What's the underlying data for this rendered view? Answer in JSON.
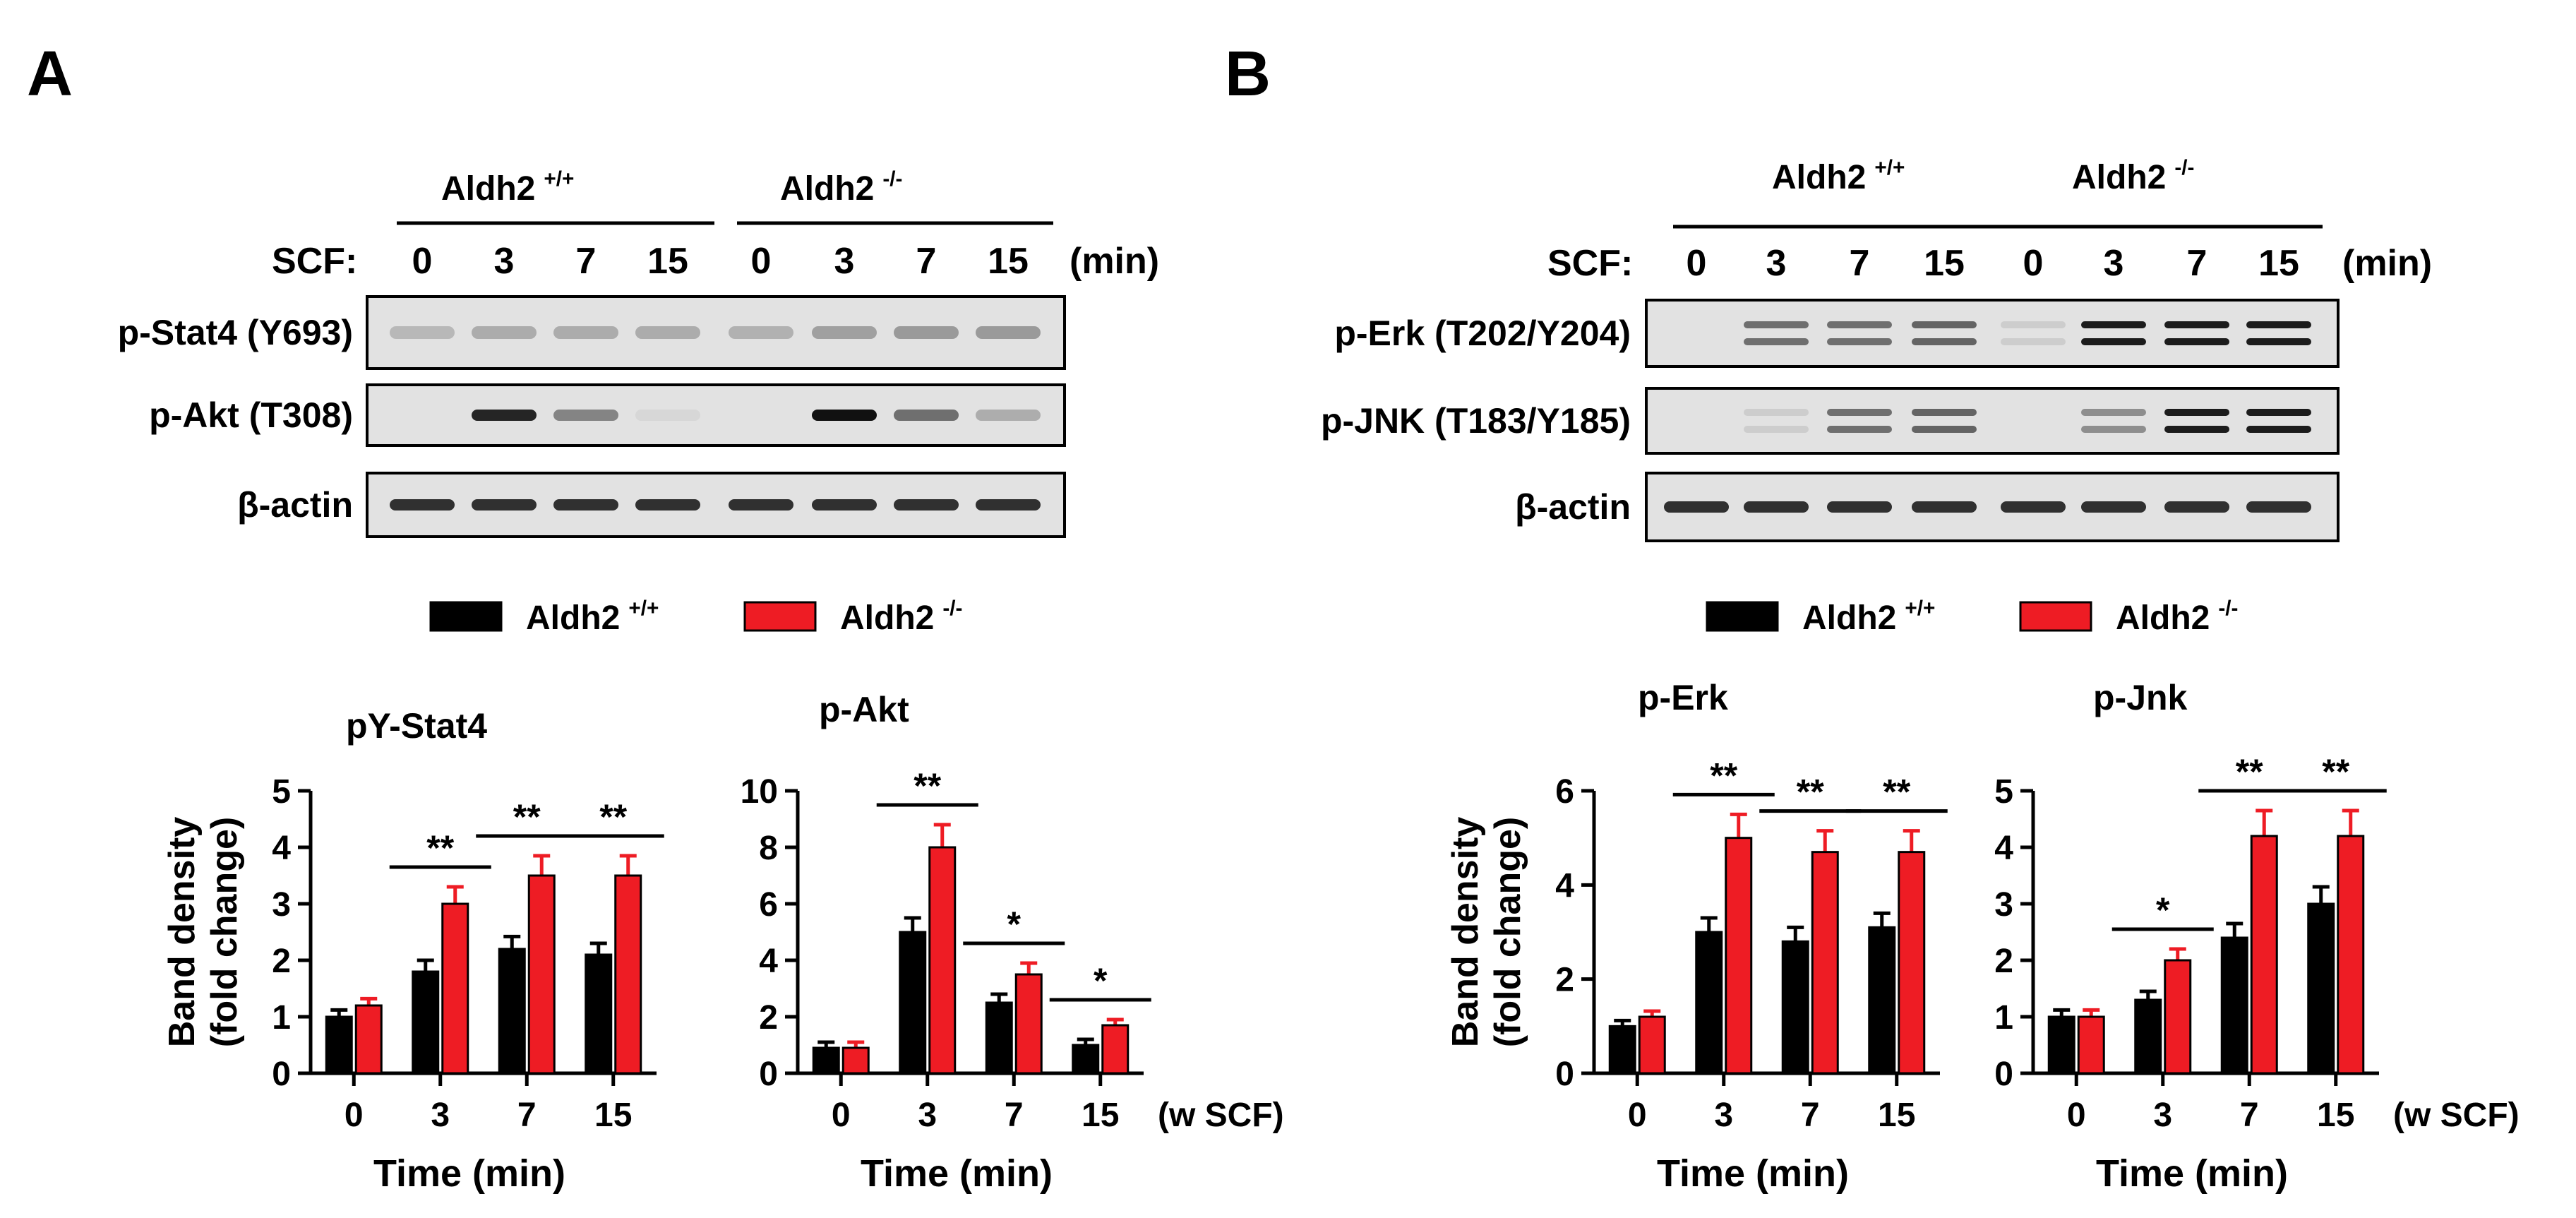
{
  "colors": {
    "wt": "#000000",
    "ko": "#ee1c24",
    "band": "#111111",
    "blotBg": "#e2e2e2"
  },
  "panels": [
    {
      "letter": "A",
      "genotypes": [
        "Aldh2",
        "Aldh2"
      ],
      "genotype_sup": [
        "+/+",
        "-/-"
      ],
      "scf_label": "SCF:",
      "timepoints": [
        "0",
        "3",
        "7",
        "15",
        "0",
        "3",
        "7",
        "15"
      ],
      "min_label": "(min)",
      "blots": [
        {
          "label": "p-Stat4 (Y693)",
          "type": "faint",
          "intensity": [
            0.35,
            0.45,
            0.45,
            0.45,
            0.4,
            0.55,
            0.6,
            0.6
          ]
        },
        {
          "label": "p-Akt  (T308)",
          "type": "single",
          "intensity": [
            0,
            0.9,
            0.45,
            0.05,
            0,
            1,
            0.55,
            0.25
          ]
        },
        {
          "label": "β-actin",
          "type": "single",
          "intensity": [
            0.85,
            0.85,
            0.85,
            0.85,
            0.85,
            0.85,
            0.85,
            0.85
          ]
        }
      ],
      "legend": [
        {
          "name": "Aldh2",
          "sup": "+/+"
        },
        {
          "name": "Aldh2",
          "sup": "-/-"
        }
      ]
    },
    {
      "letter": "B",
      "genotypes": [
        "Aldh2",
        "Aldh2"
      ],
      "genotype_sup": [
        "+/+",
        "-/-"
      ],
      "scf_label": "SCF:",
      "timepoints": [
        "0",
        "3",
        "7",
        "15",
        "0",
        "3",
        "7",
        "15"
      ],
      "min_label": "(min)",
      "blots": [
        {
          "label": "p-Erk (T202/Y204)",
          "type": "double",
          "intensity": [
            0,
            0.55,
            0.55,
            0.6,
            0.1,
            0.95,
            0.95,
            0.95
          ]
        },
        {
          "label": "p-JNK (T183/Y185)",
          "type": "double",
          "intensity": [
            0,
            0.1,
            0.55,
            0.6,
            0,
            0.4,
            0.95,
            0.95
          ]
        },
        {
          "label": "β-actin",
          "type": "single",
          "intensity": [
            0.85,
            0.85,
            0.85,
            0.85,
            0.85,
            0.85,
            0.85,
            0.85
          ]
        }
      ],
      "legend": [
        {
          "name": "Aldh2",
          "sup": "+/+"
        },
        {
          "name": "Aldh2",
          "sup": "-/-"
        }
      ]
    }
  ],
  "chart_data": [
    {
      "type": "bar",
      "title": "pY-Stat4",
      "ylabel": [
        "Band density",
        "(fold change)"
      ],
      "xlabel": "Time (min)",
      "x_suffix": "",
      "categories": [
        "0",
        "3",
        "7",
        "15"
      ],
      "ylim": [
        0,
        5
      ],
      "yticks": [
        "0",
        "1",
        "2",
        "3",
        "4",
        "5"
      ],
      "series": [
        {
          "name": "Aldh2 +/+",
          "values": [
            1.0,
            1.8,
            2.2,
            2.1
          ],
          "errors": [
            0.12,
            0.2,
            0.22,
            0.2
          ]
        },
        {
          "name": "Aldh2 -/-",
          "values": [
            1.2,
            3.0,
            3.5,
            3.5
          ],
          "errors": [
            0.12,
            0.3,
            0.35,
            0.35
          ]
        }
      ],
      "significance": [
        {
          "category": 1,
          "label": "**"
        },
        {
          "category": 2,
          "label": "**"
        },
        {
          "category": 3,
          "label": "**"
        }
      ]
    },
    {
      "type": "bar",
      "title": "p-Akt",
      "ylabel": null,
      "xlabel": "Time (min)",
      "x_suffix": "(w SCF)",
      "categories": [
        "0",
        "3",
        "7",
        "15"
      ],
      "ylim": [
        0,
        10
      ],
      "yticks": [
        "0",
        "2",
        "4",
        "6",
        "8",
        "10"
      ],
      "series": [
        {
          "name": "Aldh2 +/+",
          "values": [
            0.9,
            5.0,
            2.5,
            1.0
          ],
          "errors": [
            0.2,
            0.5,
            0.3,
            0.2
          ]
        },
        {
          "name": "Aldh2 -/-",
          "values": [
            0.9,
            8.0,
            3.5,
            1.7
          ],
          "errors": [
            0.2,
            0.8,
            0.4,
            0.2
          ]
        }
      ],
      "significance": [
        {
          "category": 1,
          "label": "**"
        },
        {
          "category": 2,
          "label": "*"
        },
        {
          "category": 3,
          "label": "*"
        }
      ]
    },
    {
      "type": "bar",
      "title": "p-Erk",
      "ylabel": [
        "Band density",
        "(fold change)"
      ],
      "xlabel": "Time (min)",
      "x_suffix": "",
      "categories": [
        "0",
        "3",
        "7",
        "15"
      ],
      "ylim": [
        0,
        6
      ],
      "yticks": [
        "0",
        "2",
        "4",
        "6"
      ],
      "series": [
        {
          "name": "Aldh2 +/+",
          "values": [
            1.0,
            3.0,
            2.8,
            3.1
          ],
          "errors": [
            0.12,
            0.3,
            0.3,
            0.3
          ]
        },
        {
          "name": "Aldh2 -/-",
          "values": [
            1.2,
            5.0,
            4.7,
            4.7
          ],
          "errors": [
            0.12,
            0.5,
            0.45,
            0.45
          ]
        }
      ],
      "significance": [
        {
          "category": 1,
          "label": "**"
        },
        {
          "category": 2,
          "label": "**"
        },
        {
          "category": 3,
          "label": "**"
        }
      ]
    },
    {
      "type": "bar",
      "title": "p-Jnk",
      "ylabel": null,
      "xlabel": "Time (min)",
      "x_suffix": "(w SCF)",
      "categories": [
        "0",
        "3",
        "7",
        "15"
      ],
      "ylim": [
        0,
        5
      ],
      "yticks": [
        "0",
        "1",
        "2",
        "3",
        "4",
        "5"
      ],
      "series": [
        {
          "name": "Aldh2 +/+",
          "values": [
            1.0,
            1.3,
            2.4,
            3.0
          ],
          "errors": [
            0.12,
            0.15,
            0.25,
            0.3
          ]
        },
        {
          "name": "Aldh2 -/-",
          "values": [
            1.0,
            2.0,
            4.2,
            4.2
          ],
          "errors": [
            0.12,
            0.2,
            0.45,
            0.45
          ]
        }
      ],
      "significance": [
        {
          "category": 1,
          "label": "*"
        },
        {
          "category": 2,
          "label": "**"
        },
        {
          "category": 3,
          "label": "**"
        }
      ]
    }
  ]
}
